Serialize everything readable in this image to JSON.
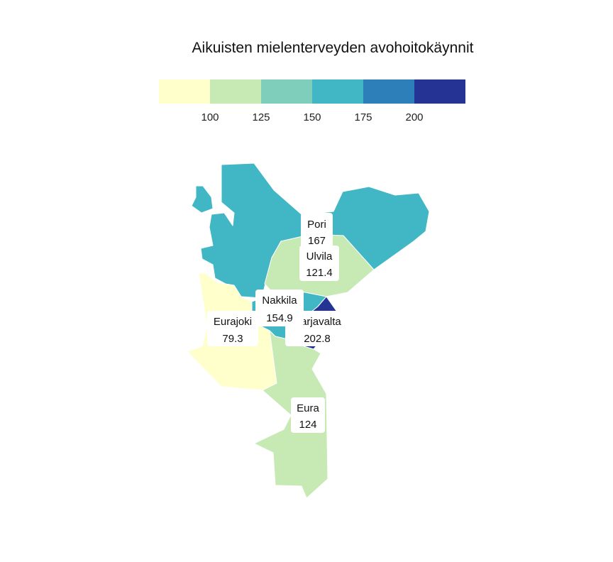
{
  "title": "Aikuisten mielenterveyden avohoitokäynnit",
  "legend": {
    "ticks": [
      "100",
      "125",
      "150",
      "175",
      "200"
    ],
    "colors": [
      "#ffffcc",
      "#c7e9b4",
      "#7fcdbb",
      "#41b6c4",
      "#2c7fb8",
      "#253494"
    ]
  },
  "regions": [
    {
      "name": "Pori",
      "value": "167",
      "color": "#41b6c4"
    },
    {
      "name": "Ulvila",
      "value": "121.4",
      "color": "#c7e9b4"
    },
    {
      "name": "Nakkila",
      "value": "154.9",
      "color": "#41b6c4"
    },
    {
      "name": "Harjavalta",
      "value": "202.8",
      "color": "#253494"
    },
    {
      "name": "Eurajoki",
      "value": "79.3",
      "color": "#ffffcc"
    },
    {
      "name": "Eura",
      "value": "124",
      "color": "#c7e9b4"
    }
  ]
}
